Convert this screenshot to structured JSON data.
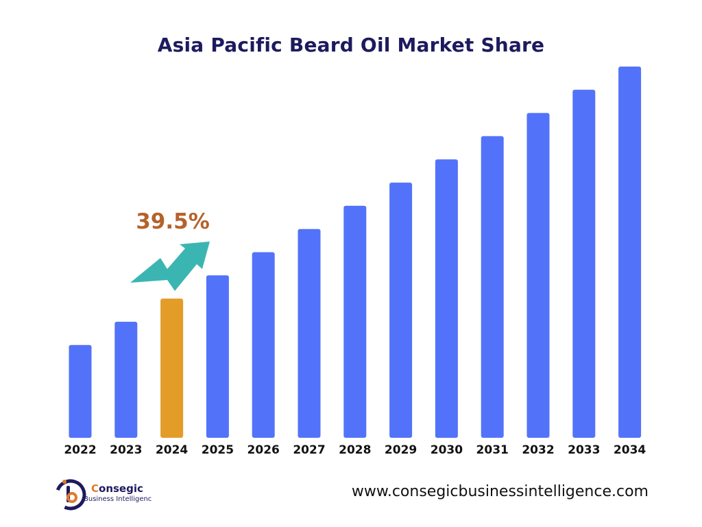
{
  "chart_data": {
    "type": "bar",
    "title": "Asia Pacific Beard Oil Market Share",
    "categories": [
      "2022",
      "2023",
      "2024",
      "2025",
      "2026",
      "2027",
      "2028",
      "2029",
      "2030",
      "2031",
      "2032",
      "2033",
      "2034"
    ],
    "values": [
      4,
      5,
      6,
      7,
      8,
      9,
      10,
      11,
      12,
      13,
      14,
      15,
      16
    ],
    "highlight_category": "2024",
    "annotation": "39.5%",
    "xlabel": "",
    "ylabel": "",
    "ylim": [
      0,
      16
    ],
    "grid": false,
    "bar_color": "#5273f9",
    "highlight_color": "#e49c28",
    "arrow_color": "#3ab5b2",
    "annotation_color": "#b4622b"
  },
  "brand": {
    "name_prefix": "C",
    "name_rest": "onsegic",
    "subtitle": "Business Intelligenc",
    "website": "www.consegicbusinessintelligence.com"
  }
}
